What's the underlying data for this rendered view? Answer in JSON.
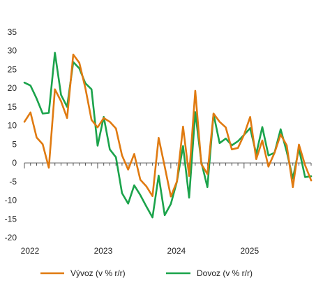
{
  "chart_data": {
    "type": "line",
    "ylim": [
      -20,
      35
    ],
    "y_ticks": [
      35,
      30,
      25,
      20,
      15,
      10,
      5,
      0,
      -5,
      -10,
      -15,
      -20
    ],
    "x_start": "2022-01",
    "x_ticks": [
      {
        "label": "2022",
        "month_index": 0
      },
      {
        "label": "2023",
        "month_index": 12
      },
      {
        "label": "2024",
        "month_index": 24
      },
      {
        "label": "2025",
        "month_index": 36
      }
    ],
    "grid": false,
    "legend_position": "bottom",
    "series": [
      {
        "name": "Vývoz (v % r/r)",
        "color": "#E07A10",
        "values": [
          11.0,
          13.5,
          6.8,
          5.0,
          -1.3,
          19.7,
          16.5,
          12.0,
          29.0,
          26.8,
          20.0,
          11.5,
          9.5,
          12.0,
          11.0,
          9.2,
          2.0,
          -1.8,
          2.4,
          -4.5,
          -6.3,
          -8.9,
          6.7,
          -1.0,
          -9.0,
          -5.0,
          9.7,
          -3.5,
          19.3,
          -0.3,
          -3.0,
          13.2,
          11.0,
          9.5,
          3.6,
          4.0,
          7.5,
          12.3,
          1.0,
          6.0,
          -1.0,
          2.7,
          7.6,
          4.7,
          -6.5,
          4.9,
          -0.6,
          -4.7
        ]
      },
      {
        "name": "Dovoz (v % r/r)",
        "color": "#1BA34B",
        "values": [
          21.5,
          20.7,
          17.2,
          13.2,
          13.4,
          29.5,
          18.2,
          15.0,
          27.0,
          25.3,
          21.3,
          19.7,
          4.6,
          12.3,
          3.6,
          1.5,
          -8.1,
          -10.9,
          -6.0,
          -8.6,
          -11.7,
          -14.6,
          -3.4,
          -14.0,
          -11.0,
          -5.0,
          4.5,
          -9.3,
          13.6,
          0.2,
          -6.5,
          13.1,
          5.3,
          6.5,
          4.7,
          5.8,
          7.5,
          9.3,
          2.4,
          9.6,
          2.0,
          2.7,
          9.0,
          3.0,
          -4.2,
          3.8,
          -3.8,
          -3.6
        ]
      }
    ]
  }
}
